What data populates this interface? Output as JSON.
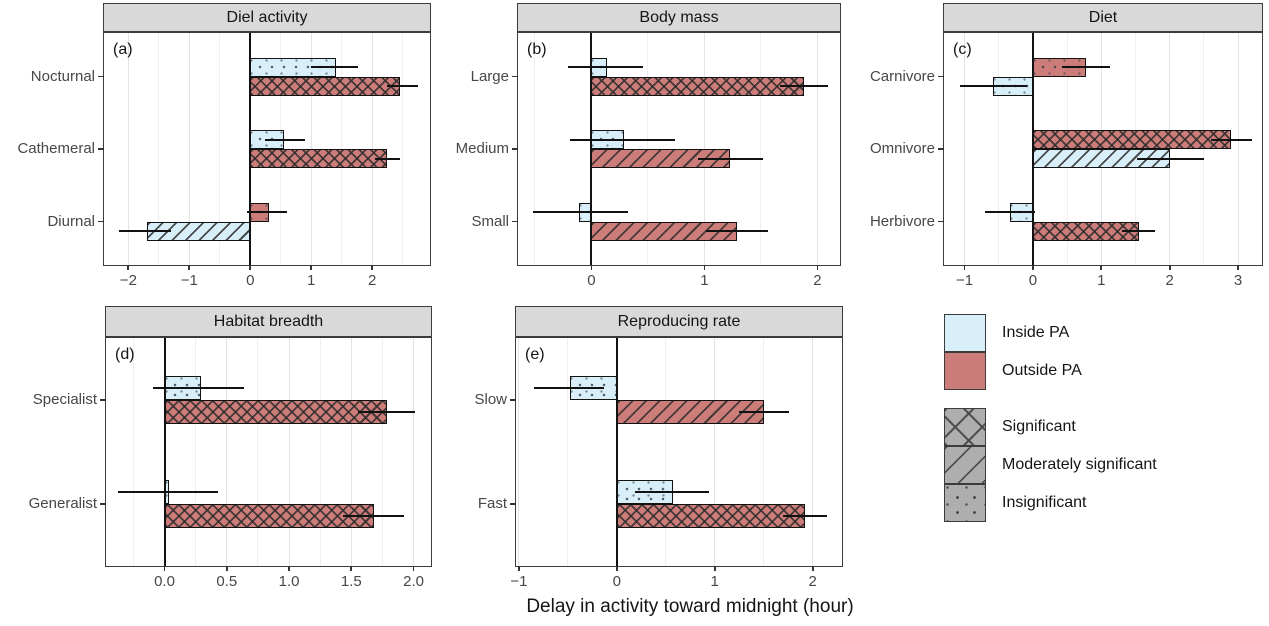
{
  "figure": {
    "xlabel": "Delay in activity toward midnight (hour)"
  },
  "colors": {
    "inside_pa_fill": "#d8eef8",
    "outside_pa_fill": "#cd7d79",
    "legend_gray_fill": "#aeaeae",
    "header_bg": "#d9d9d9"
  },
  "legend": {
    "fill_items": [
      {
        "label": "Inside PA",
        "fill": "inside_pa_fill"
      },
      {
        "label": "Outside PA",
        "fill": "outside_pa_fill"
      }
    ],
    "pattern_items": [
      {
        "label": "Significant",
        "pattern": "significant"
      },
      {
        "label": "Moderately significant",
        "pattern": "moderately-significant"
      },
      {
        "label": "Insignificant",
        "pattern": "insignificant"
      }
    ]
  },
  "chart_data": [
    {
      "panel": "a",
      "letter": "(a)",
      "title": "Diel activity",
      "type": "bar",
      "orientation": "horizontal",
      "xlim": [
        -2.4,
        2.95
      ],
      "xticks": [
        -2,
        -1,
        0,
        1,
        2
      ],
      "xtick_labels": [
        "−2",
        "−1",
        "0",
        "1",
        "2"
      ],
      "categories": [
        "Nocturnal",
        "Cathemeral",
        "Diurnal"
      ],
      "rows": [
        {
          "category": "Nocturnal",
          "bars": [
            {
              "series": "Inside PA",
              "value": 1.4,
              "ci": [
                1.0,
                1.77
              ],
              "significance": "insignificant"
            },
            {
              "series": "Outside PA",
              "value": 2.45,
              "ci": [
                2.25,
                2.75
              ],
              "significance": "significant"
            }
          ]
        },
        {
          "category": "Cathemeral",
          "bars": [
            {
              "series": "Inside PA",
              "value": 0.55,
              "ci": [
                0.25,
                0.9
              ],
              "significance": "insignificant"
            },
            {
              "series": "Outside PA",
              "value": 2.25,
              "ci": [
                2.05,
                2.45
              ],
              "significance": "significant"
            }
          ]
        },
        {
          "category": "Diurnal",
          "bars": [
            {
              "series": "Outside PA",
              "value": 0.3,
              "ci": [
                -0.05,
                0.6
              ],
              "significance": "insignificant"
            },
            {
              "series": "Inside PA",
              "value": -1.7,
              "ci": [
                -2.15,
                -1.3
              ],
              "significance": "moderately-significant"
            }
          ]
        }
      ]
    },
    {
      "panel": "b",
      "letter": "(b)",
      "title": "Body mass",
      "type": "bar",
      "orientation": "horizontal",
      "xlim": [
        -0.65,
        2.2
      ],
      "xticks": [
        0,
        1,
        2
      ],
      "xtick_labels": [
        "0",
        "1",
        "2"
      ],
      "categories": [
        "Large",
        "Medium",
        "Small"
      ],
      "rows": [
        {
          "category": "Large",
          "bars": [
            {
              "series": "Inside PA",
              "value": 0.14,
              "ci": [
                -0.21,
                0.46
              ],
              "significance": "insignificant"
            },
            {
              "series": "Outside PA",
              "value": 1.88,
              "ci": [
                1.67,
                2.09
              ],
              "significance": "significant"
            }
          ]
        },
        {
          "category": "Medium",
          "bars": [
            {
              "series": "Inside PA",
              "value": 0.29,
              "ci": [
                -0.19,
                0.74
              ],
              "significance": "insignificant"
            },
            {
              "series": "Outside PA",
              "value": 1.23,
              "ci": [
                0.94,
                1.52
              ],
              "significance": "moderately-significant"
            }
          ]
        },
        {
          "category": "Small",
          "bars": [
            {
              "series": "Inside PA",
              "value": -0.11,
              "ci": [
                -0.52,
                0.32
              ],
              "significance": "insignificant"
            },
            {
              "series": "Outside PA",
              "value": 1.29,
              "ci": [
                1.01,
                1.56
              ],
              "significance": "moderately-significant"
            }
          ]
        }
      ]
    },
    {
      "panel": "c",
      "letter": "(c)",
      "title": "Diet",
      "type": "bar",
      "orientation": "horizontal",
      "xlim": [
        -1.3,
        3.35
      ],
      "xticks": [
        -1,
        0,
        1,
        2,
        3
      ],
      "xtick_labels": [
        "−1",
        "0",
        "1",
        "2",
        "3"
      ],
      "categories": [
        "Carnivore",
        "Omnivore",
        "Herbivore"
      ],
      "rows": [
        {
          "category": "Carnivore",
          "bars": [
            {
              "series": "Outside PA",
              "value": 0.78,
              "ci": [
                0.43,
                1.13
              ],
              "significance": "insignificant"
            },
            {
              "series": "Inside PA",
              "value": -0.58,
              "ci": [
                -1.07,
                -0.08
              ],
              "significance": "insignificant"
            }
          ]
        },
        {
          "category": "Omnivore",
          "bars": [
            {
              "series": "Outside PA",
              "value": 2.9,
              "ci": [
                2.6,
                3.2
              ],
              "significance": "significant"
            },
            {
              "series": "Inside PA",
              "value": 2.0,
              "ci": [
                1.52,
                2.5
              ],
              "significance": "moderately-significant"
            }
          ]
        },
        {
          "category": "Herbivore",
          "bars": [
            {
              "series": "Inside PA",
              "value": -0.33,
              "ci": [
                -0.7,
                0.03
              ],
              "significance": "insignificant"
            },
            {
              "series": "Outside PA",
              "value": 1.55,
              "ci": [
                1.3,
                1.78
              ],
              "significance": "significant"
            }
          ]
        }
      ]
    },
    {
      "panel": "d",
      "letter": "(d)",
      "title": "Habitat breadth",
      "type": "bar",
      "orientation": "horizontal",
      "xlim": [
        -0.47,
        2.14
      ],
      "xticks": [
        0.0,
        0.5,
        1.0,
        1.5,
        2.0
      ],
      "xtick_labels": [
        "0.0",
        "0.5",
        "1.0",
        "1.5",
        "2.0"
      ],
      "categories": [
        "Specialist",
        "Generalist"
      ],
      "rows": [
        {
          "category": "Specialist",
          "bars": [
            {
              "series": "Inside PA",
              "value": 0.29,
              "ci": [
                -0.09,
                0.64
              ],
              "significance": "insignificant"
            },
            {
              "series": "Outside PA",
              "value": 1.79,
              "ci": [
                1.55,
                2.01
              ],
              "significance": "significant"
            }
          ]
        },
        {
          "category": "Generalist",
          "bars": [
            {
              "series": "Inside PA",
              "value": 0.04,
              "ci": [
                -0.37,
                0.43
              ],
              "significance": "insignificant"
            },
            {
              "series": "Outside PA",
              "value": 1.68,
              "ci": [
                1.43,
                1.92
              ],
              "significance": "significant"
            }
          ]
        }
      ]
    },
    {
      "panel": "e",
      "letter": "(e)",
      "title": "Reproducing rate",
      "type": "bar",
      "orientation": "horizontal",
      "xlim": [
        -1.03,
        2.3
      ],
      "xticks": [
        -1,
        0,
        1,
        2
      ],
      "xtick_labels": [
        "−1",
        "0",
        "1",
        "2"
      ],
      "categories": [
        "Slow",
        "Fast"
      ],
      "rows": [
        {
          "category": "Slow",
          "bars": [
            {
              "series": "Inside PA",
              "value": -0.48,
              "ci": [
                -0.85,
                -0.13
              ],
              "significance": "insignificant"
            },
            {
              "series": "Outside PA",
              "value": 1.5,
              "ci": [
                1.25,
                1.76
              ],
              "significance": "moderately-significant"
            }
          ]
        },
        {
          "category": "Fast",
          "bars": [
            {
              "series": "Inside PA",
              "value": 0.57,
              "ci": [
                0.19,
                0.94
              ],
              "significance": "insignificant"
            },
            {
              "series": "Outside PA",
              "value": 1.92,
              "ci": [
                1.7,
                2.15
              ],
              "significance": "significant"
            }
          ]
        }
      ]
    }
  ]
}
